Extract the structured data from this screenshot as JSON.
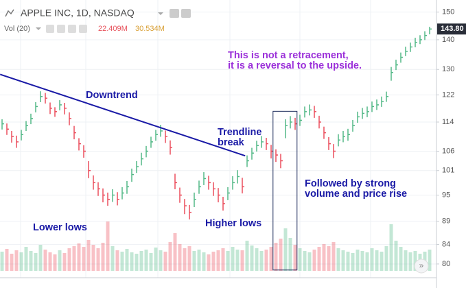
{
  "chart_data": {
    "type": "ohlc",
    "title": "APPLE INC, 1D, NASDAQ",
    "log_scale": true,
    "grid": true,
    "ylim": [
      77.3,
      154.6
    ],
    "yticks": [
      80,
      84,
      89,
      95,
      101,
      106,
      114,
      122,
      130,
      140,
      150
    ],
    "up_color": "#53b987",
    "down_color": "#eb4d5c",
    "close": [
      113.5,
      112,
      110,
      108.5,
      110.5,
      113,
      115,
      118.5,
      121.5,
      121,
      118,
      117,
      119,
      118,
      115,
      111,
      108,
      106,
      101,
      98,
      96.5,
      95,
      94,
      95,
      94,
      95.5,
      97,
      100,
      102,
      104,
      106,
      108.5,
      110.5,
      111.5,
      110,
      107,
      98,
      95,
      92.5,
      91,
      94,
      97,
      99,
      98,
      96.5,
      95,
      93,
      95.5,
      98,
      99.5,
      97,
      103.5,
      105.5,
      107.5,
      108.5,
      108,
      106,
      105,
      103.5,
      113,
      114,
      113.5,
      114.5,
      117,
      117.5,
      117,
      114,
      111,
      108,
      106,
      109,
      110,
      110.5,
      113,
      115.5,
      116.5,
      117,
      118.5,
      119,
      120,
      121.5,
      129,
      131.5,
      134,
      136,
      137.5,
      139,
      140,
      141.5,
      143.8
    ],
    "high": [
      114.8,
      113.6,
      111.5,
      110.2,
      111.8,
      114.3,
      116.4,
      119.8,
      123.1,
      122.6,
      119.7,
      118.3,
      120.4,
      119.6,
      116.8,
      112.9,
      109.5,
      107.6,
      103.4,
      99.8,
      98.1,
      96.6,
      95.6,
      96.4,
      95.7,
      96.9,
      98.4,
      101.5,
      103.4,
      105.6,
      107.4,
      109.9,
      111.8,
      113.2,
      111.6,
      108.9,
      100.2,
      96.8,
      94.1,
      92.7,
      95.6,
      98.5,
      100.6,
      99.7,
      98.1,
      96.7,
      94.6,
      96.9,
      99.6,
      101.1,
      99.2,
      104.9,
      106.9,
      108.8,
      110.1,
      109.6,
      107.7,
      106.5,
      105.3,
      114.8,
      115.7,
      115.2,
      116.1,
      118.5,
      119.1,
      118.7,
      115.8,
      112.7,
      109.8,
      107.9,
      110.6,
      111.5,
      112.1,
      114.6,
      117.0,
      118.1,
      118.5,
      120.0,
      120.6,
      121.5,
      123.0,
      130.8,
      133.2,
      135.6,
      137.6,
      139.0,
      140.7,
      141.6,
      143.0,
      144.6
    ],
    "low": [
      111.9,
      110.4,
      108.3,
      106.9,
      108.9,
      111.5,
      113.4,
      116.8,
      119.8,
      119.4,
      116.3,
      115.5,
      117.4,
      116.2,
      113.1,
      109.2,
      106.2,
      104.3,
      99.1,
      96.3,
      94.8,
      93.3,
      92.5,
      93.4,
      92.6,
      94.0,
      95.3,
      98.2,
      100.4,
      102.3,
      104.4,
      106.9,
      108.8,
      109.9,
      108.2,
      105.1,
      96.4,
      93.2,
      90.6,
      89.4,
      92.2,
      95.3,
      97.4,
      96.3,
      94.8,
      93.3,
      91.4,
      93.8,
      96.3,
      97.8,
      95.4,
      101.9,
      103.8,
      105.9,
      106.9,
      106.3,
      104.1,
      103.2,
      101.6,
      109.5,
      112.2,
      111.8,
      112.9,
      115.3,
      115.9,
      115.2,
      112.2,
      109.3,
      106.3,
      104.2,
      107.3,
      108.4,
      108.8,
      111.3,
      113.8,
      114.9,
      115.4,
      116.9,
      117.5,
      118.4,
      119.9,
      126.4,
      129.8,
      132.2,
      134.4,
      135.8,
      137.4,
      138.5,
      139.9,
      141.9
    ],
    "volume": {
      "ylim": [
        0,
        120
      ],
      "values": [
        28,
        32,
        25,
        30,
        27,
        35,
        29,
        26,
        38,
        31,
        27,
        24,
        30,
        26,
        33,
        36,
        40,
        35,
        45,
        38,
        33,
        41,
        72,
        36,
        30,
        28,
        32,
        27,
        25,
        29,
        31,
        26,
        34,
        30,
        28,
        42,
        55,
        39,
        33,
        36,
        29,
        31,
        27,
        24,
        28,
        30,
        33,
        29,
        35,
        31,
        30,
        44,
        37,
        33,
        29,
        31,
        35,
        41,
        47,
        62,
        48,
        38,
        33,
        29,
        27,
        31,
        35,
        39,
        36,
        42,
        33,
        30,
        28,
        26,
        31,
        29,
        27,
        33,
        30,
        28,
        36,
        68,
        44,
        35,
        30,
        27,
        29,
        25,
        28,
        31
      ]
    },
    "volume_legend": {
      "label": "Vol (20)",
      "values": [
        22.409,
        30.534
      ],
      "value_labels": [
        "22.409M",
        "30.534M"
      ],
      "colors": [
        "#e7525c",
        "#d9a036"
      ]
    },
    "last_price": 143.8,
    "last_price_label": "143.80",
    "trendline": {
      "x": [
        -0.4,
        50.6
      ],
      "y": [
        128.4,
        104.8
      ],
      "color": "#1a1aa6"
    },
    "highlight_box": {
      "x": [
        56.4,
        61.4
      ],
      "y": [
        78.8,
        117.1
      ]
    },
    "annotations": [
      {
        "lines": [
          "Downtrend"
        ],
        "color": "#1a1aa6"
      },
      {
        "lines": [
          "Trendline",
          "break"
        ],
        "color": "#1a1aa6"
      },
      {
        "lines": [
          "Lower lows"
        ],
        "color": "#1a1aa6"
      },
      {
        "lines": [
          "Higher lows"
        ],
        "color": "#1a1aa6"
      },
      {
        "lines": [
          "Followed by strong",
          "volume and price rise"
        ],
        "color": "#1a1aa6"
      },
      {
        "lines": [
          "This is not a retracement,",
          "it is a reversal to the upside."
        ],
        "color": "#9b30d9"
      }
    ]
  }
}
